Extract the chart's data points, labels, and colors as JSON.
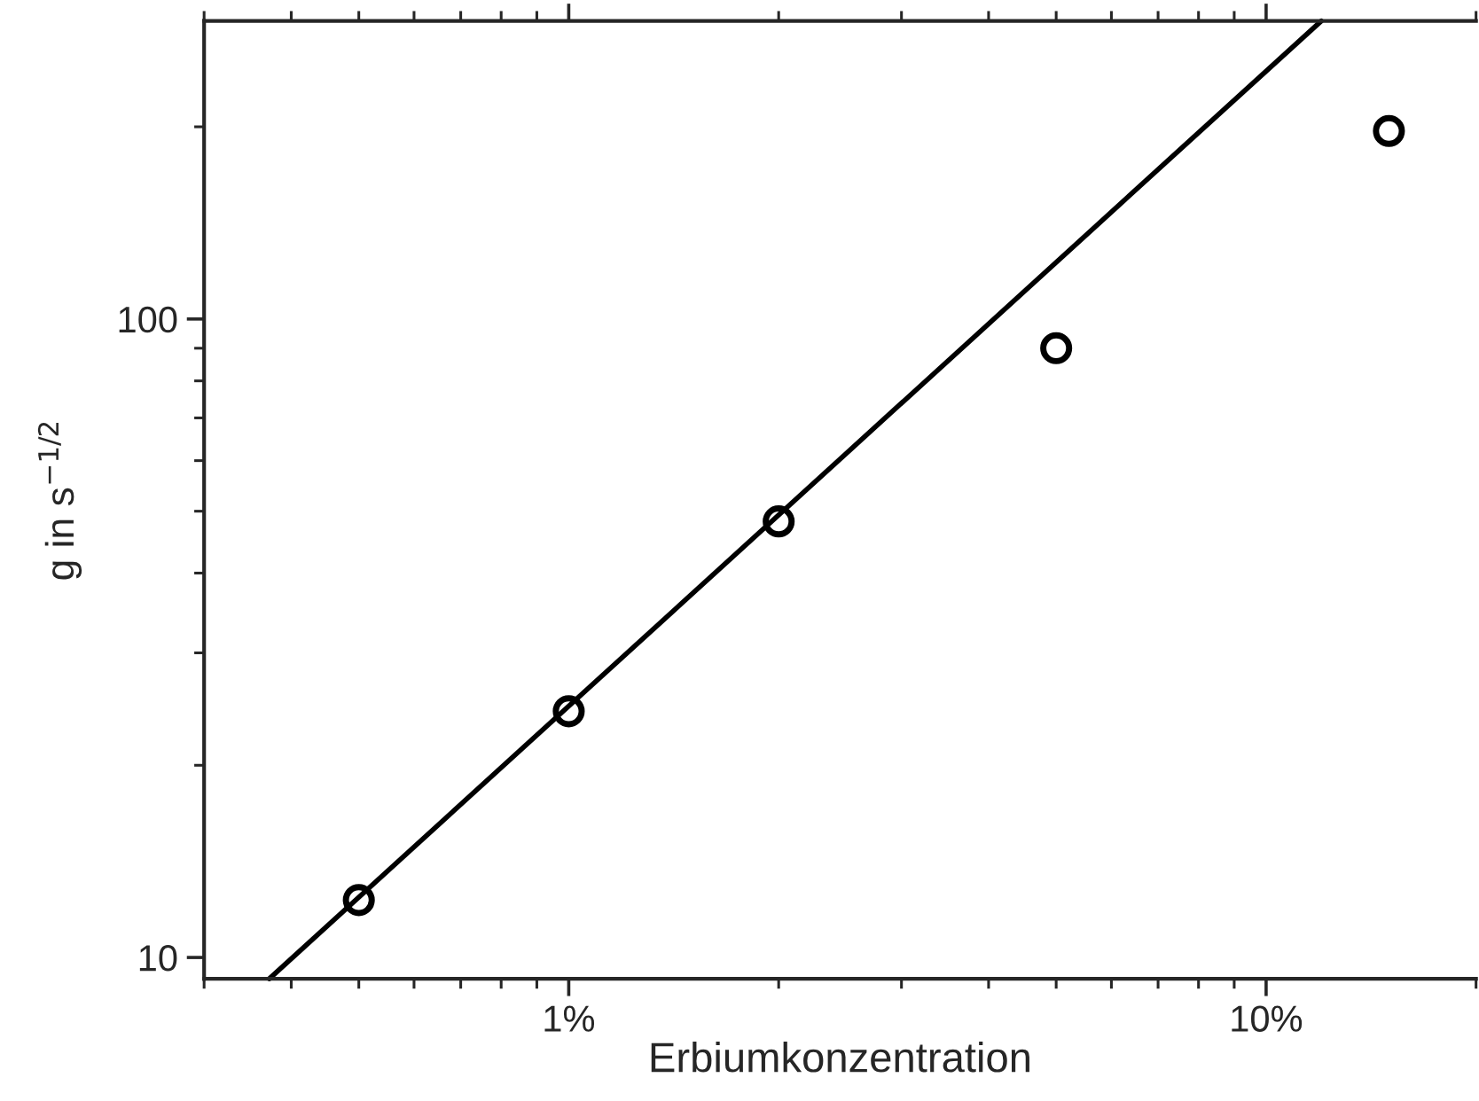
{
  "chart_data": {
    "type": "scatter",
    "xlabel": "Erbiumkonzentration",
    "ylabel": "g in s$^{−1/2}$",
    "log": "xy",
    "marker": "circle",
    "grid": false,
    "legend": false,
    "series": [
      {
        "color": "#000000",
        "x": [
          0.5,
          1,
          2,
          5,
          15
        ],
        "values": [
          12.3,
          24.3,
          48.2,
          90,
          197
        ]
      },
      {
        "type": "line",
        "color": "#000000",
        "line_style": "solid",
        "marker": "none",
        "x": [
          0.372,
          12.0
        ],
        "values": [
          9.26,
          293
        ]
      }
    ],
    "xlim": [
      0.3,
      20
    ],
    "ylim": [
      9.26,
      293
    ],
    "xticks": [
      {
        "value": 1,
        "label": "1%"
      },
      {
        "value": 10,
        "label": "10%"
      }
    ],
    "yticks": [
      10,
      100
    ]
  }
}
